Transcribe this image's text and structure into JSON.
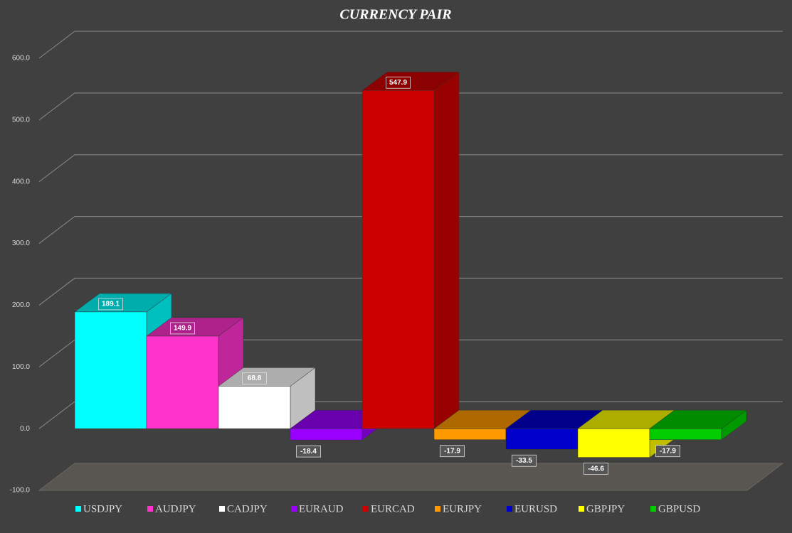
{
  "chart_data": {
    "type": "bar3d",
    "title": "CURRENCY PAIR",
    "categories": [
      "USDJPY",
      "AUDJPY",
      "CADJPY",
      "EURAUD",
      "EURCAD",
      "EURJPY",
      "EURUSD",
      "GBPJPY",
      "GBPUSD"
    ],
    "values": [
      189.1,
      149.9,
      68.8,
      -18.4,
      547.9,
      -17.9,
      -33.5,
      -46.6,
      -17.9
    ],
    "colors": [
      "#00ffff",
      "#ff33cc",
      "#ffffff",
      "#9900ff",
      "#cc0000",
      "#ff9900",
      "#0000cc",
      "#ffff00",
      "#00cc00"
    ],
    "ylim": [
      -100,
      600
    ],
    "yticks": [
      {
        "value": -100,
        "label": "-100.0"
      },
      {
        "value": 0,
        "label": "0.0"
      },
      {
        "value": 100,
        "label": "100.0"
      },
      {
        "value": 200,
        "label": "200.0"
      },
      {
        "value": 300,
        "label": "300.0"
      },
      {
        "value": 400,
        "label": "400.0"
      },
      {
        "value": 500,
        "label": "500.0"
      },
      {
        "value": 600,
        "label": "600.0"
      }
    ],
    "grid": true,
    "legend": "bottom"
  }
}
